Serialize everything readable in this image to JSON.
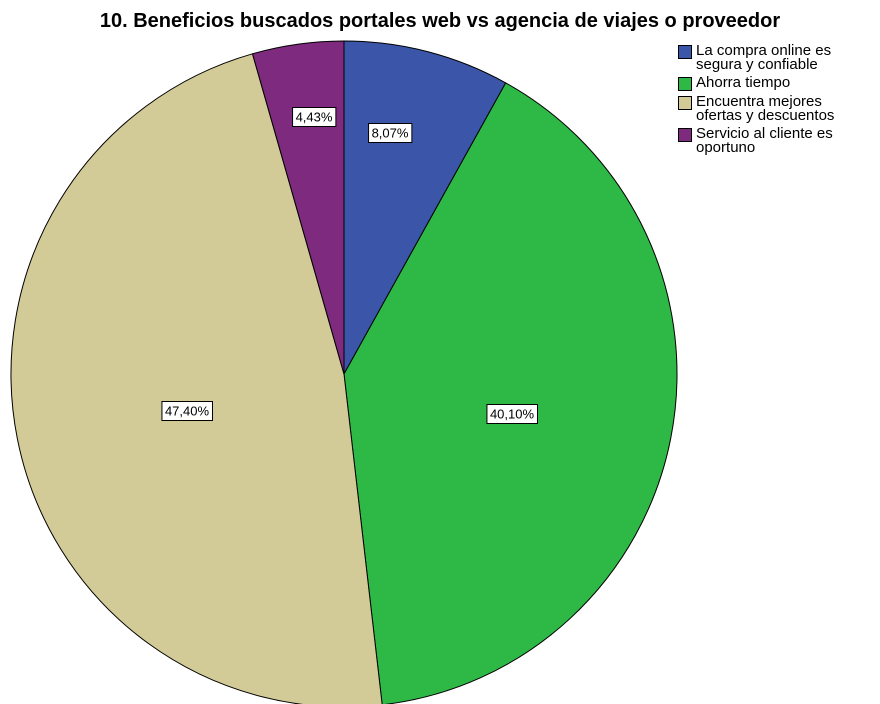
{
  "chart_data": {
    "type": "pie",
    "title": "10. Beneficios buscados portales web vs agencia de viajes o proveedor",
    "slices": [
      {
        "label": "La compra online es\nsegura y confiable",
        "value": 8.07,
        "display": "8,07%",
        "color": "#3b55a8"
      },
      {
        "label": "Ahorra tiempo",
        "value": 40.1,
        "display": "40,10%",
        "color": "#2eb947"
      },
      {
        "label": "Encuentra mejores\nofertas y descuentos",
        "value": 47.4,
        "display": "47,40%",
        "color": "#d3cb97"
      },
      {
        "label": "Servicio al cliente es\noportuno",
        "value": 4.43,
        "display": "4,43%",
        "color": "#7e2a7e"
      }
    ],
    "legend_position": "top-right",
    "start_angle": "12 o'clock",
    "direction": "clockwise"
  }
}
